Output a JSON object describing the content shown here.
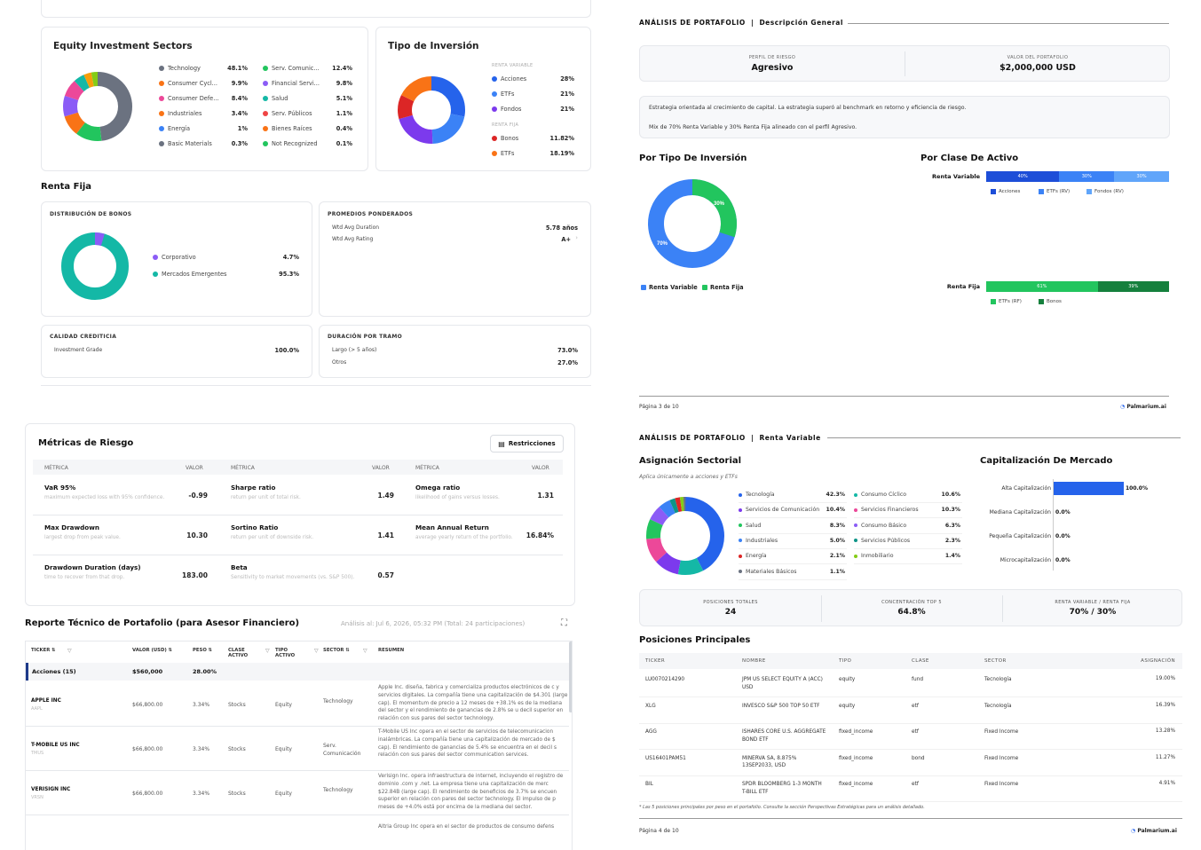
{
  "colors": {
    "blue": "#2563eb",
    "blue2": "#3b82f6",
    "blue3": "#60a5fa",
    "green": "#22c55e",
    "teal": "#14b8a6",
    "orange": "#f97316",
    "red": "#dc2626",
    "purple": "#8b5cf6",
    "gray": "#6b7280",
    "darkgreen": "#15803d"
  },
  "eq": {
    "title": "Equity Investment Sectors",
    "left": [
      {
        "n": "Technology",
        "v": "48.1%",
        "c": "#6b7280"
      },
      {
        "n": "Consumer Cycl...",
        "v": "9.9%",
        "c": "#f97316"
      },
      {
        "n": "Consumer Defe...",
        "v": "8.4%",
        "c": "#ec4899"
      },
      {
        "n": "Industriales",
        "v": "3.4%",
        "c": "#f97316"
      },
      {
        "n": "Energía",
        "v": "1%",
        "c": "#3b82f6"
      },
      {
        "n": "Basic Materials",
        "v": "0.3%",
        "c": "#6b7280"
      }
    ],
    "right": [
      {
        "n": "Serv. Comunic...",
        "v": "12.4%",
        "c": "#22c55e"
      },
      {
        "n": "Financial Servi...",
        "v": "9.8%",
        "c": "#8b5cf6"
      },
      {
        "n": "Salud",
        "v": "5.1%",
        "c": "#14b8a6"
      },
      {
        "n": "Serv. Públicos",
        "v": "1.1%",
        "c": "#ef4444"
      },
      {
        "n": "Bienes Raíces",
        "v": "0.4%",
        "c": "#f97316"
      },
      {
        "n": "Not Recognized",
        "v": "0.1%",
        "c": "#22c55e"
      }
    ]
  },
  "tipo": {
    "title": "Tipo de Inversión",
    "rv": "RENTA VARIABLE",
    "rf": "RENTA FIJA",
    "items": [
      {
        "n": "Acciones",
        "v": "28%",
        "c": "#2563eb"
      },
      {
        "n": "ETFs",
        "v": "21%",
        "c": "#3b82f6"
      },
      {
        "n": "Fondos",
        "v": "21%",
        "c": "#7c3aed"
      }
    ],
    "items2": [
      {
        "n": "Bonos",
        "v": "11.82%",
        "c": "#dc2626"
      },
      {
        "n": "ETFs",
        "v": "18.19%",
        "c": "#f97316"
      }
    ]
  },
  "rf": {
    "title": "Renta Fija",
    "dist": "DISTRIBUCIÓN DE BONOS",
    "corp": "Corporativo",
    "corpv": "4.7%",
    "em": "Mercados Emergentes",
    "emv": "95.3%",
    "prom": "PROMEDIOS PONDERADOS",
    "dur": "Wtd Avg Duration",
    "durv": "5.78 años",
    "rat": "Wtd Avg Rating",
    "ratv": "A+",
    "cal": "CALIDAD CREDITICIA",
    "ig": "Investment Grade",
    "igv": "100.0%",
    "tramo": "DURACIÓN POR TRAMO",
    "largo": "Largo (> 5 años)",
    "largov": "73.0%",
    "otros": "Otros",
    "otrosv": "27.0%"
  },
  "p3": {
    "h1": "ANÁLISIS DE PORTAFOLIO",
    "sep": "|",
    "h2": "Descripción General",
    "perfil_l": "PERFIL DE RIESGO",
    "perfil": "Agresivo",
    "valor_l": "VALOR DEL PORTAFOLIO",
    "valor": "$2,000,000 USD",
    "text1": "Estrategia orientada al crecimiento de capital. La estrategia superó al benchmark en retorno y eficiencia de riesgo.",
    "text2": "Mix de 70% Renta Variable y 30% Renta Fija alineado con el perfil Agresivo.",
    "tipo_title": "Por Tipo De Inversión",
    "clase_title": "Por Clase De Activo",
    "p30": "30%",
    "p70": "70%",
    "leg_rv": "Renta Variable",
    "leg_rf": "Renta Fija",
    "rv": "Renta Variable",
    "rv_b": [
      "40%",
      "30%",
      "30%"
    ],
    "rv_l": [
      "Acciones",
      "ETFs (RV)",
      "Fondos (RV)"
    ],
    "rfx": "Renta Fija",
    "rf_b": [
      "61%",
      "39%"
    ],
    "rf_l": [
      "ETFs (RF)",
      "Bonos"
    ],
    "page": "Página 3 de 10",
    "brand": "Palmarium.ai"
  },
  "risk": {
    "title": "Métricas de Riesgo",
    "btn": "Restricciones",
    "h_m": "MÉTRICA",
    "h_v": "VALOR",
    "rows": [
      [
        {
          "n": "VaR 95%",
          "d": "maximum expected loss with 95% confidence.",
          "v": "-0.99"
        },
        {
          "n": "Sharpe ratio",
          "d": "return per unit of total risk.",
          "v": "1.49"
        },
        {
          "n": "Omega ratio",
          "d": "likelihood of gains versus losses.",
          "v": "1.31"
        }
      ],
      [
        {
          "n": "Max Drawdown",
          "d": "largest drop from peak value.",
          "v": "10.30"
        },
        {
          "n": "Sortino Ratio",
          "d": "return per unit of downside risk.",
          "v": "1.41"
        },
        {
          "n": "Mean Annual Return",
          "d": "average yearly return of the portfolio.",
          "v": "16.84%"
        }
      ],
      [
        {
          "n": "Drawdown Duration (days)",
          "d": "time to recover from that drop.",
          "v": "183.00"
        },
        {
          "n": "Beta",
          "d": "Sensitivity to market movements (vs. S&P 500).",
          "v": "0.57"
        }
      ]
    ]
  },
  "rep": {
    "title": "Reporte Técnico de Portafolio (para Asesor Financiero)",
    "sub": "Análisis al: Jul 6, 2026, 05:32 PM (Total: 24 participaciones)",
    "cols": [
      "TICKER ⇅",
      "VALOR (USD) ⇅",
      "PESO ⇅",
      "CLASE ACTIVO",
      "TIPO ACTIVO",
      "SECTOR ⇅",
      "RESUMEN"
    ],
    "group": "Acciones (15)",
    "gval": "$560,000",
    "gpeso": "28.00%",
    "rows": [
      {
        "n": "APPLE INC",
        "t": "AAPL",
        "v": "$66,800.00",
        "p": "3.34%",
        "c": "Stocks",
        "ty": "Equity",
        "s": "Technology",
        "r": "Apple Inc. diseña, fabrica y comercializa productos electrónicos de c y servicios digitales. La compañía tiene una capitalización de $4.301 (large cap). El momentum de precio a 12 meses de +38.1% es de la mediana del sector y el rendimiento de ganancias de 2.8% se u decil superior en relación con sus pares del sector technology."
      },
      {
        "n": "T-MOBILE US INC",
        "t": "TMUS",
        "v": "$66,800.00",
        "p": "3.34%",
        "c": "Stocks",
        "ty": "Equity",
        "s": "Serv. Comunicación",
        "r": "T-Mobile US Inc opera en el sector de servicios de telecomunicacion inalámbricas. La compañía tiene una capitalización de mercado de $ cap). El rendimiento de ganancias de 5.4% se encuentra en el decil s relación con sus pares del sector communication services."
      },
      {
        "n": "VERISIGN INC",
        "t": "VRSN",
        "v": "$66,800.00",
        "p": "3.34%",
        "c": "Stocks",
        "ty": "Equity",
        "s": "Technology",
        "r": "Verisign Inc. opera infraestructura de internet, incluyendo el registro de dominio .com y .net. La empresa tiene una capitalización de merc $22.84B (large cap). El rendimiento de beneficios de 3.7% se encuen superior en relación con pares del sector technology. El impulso de p meses de +4.0% está por encima de la mediana del sector."
      }
    ],
    "last": "Altria Group Inc opera en el sector de productos de consumo defens"
  },
  "p4": {
    "h1": "ANÁLISIS DE PORTAFOLIO",
    "sep": "|",
    "h2": "Renta Variable",
    "asig": "Asignación Sectorial",
    "asig_sub": "Aplica únicamente a acciones y ETFs",
    "cap": "Capitalización De Mercado",
    "secL": [
      {
        "n": "Tecnología",
        "v": "42.3%",
        "c": "#2563eb"
      },
      {
        "n": "Servicios de Comunicación",
        "v": "10.4%",
        "c": "#7c3aed"
      },
      {
        "n": "Salud",
        "v": "8.3%",
        "c": "#22c55e"
      },
      {
        "n": "Industriales",
        "v": "5.0%",
        "c": "#3b82f6"
      },
      {
        "n": "Energía",
        "v": "2.1%",
        "c": "#dc2626"
      },
      {
        "n": "Materiales Básicos",
        "v": "1.1%",
        "c": "#6b7280"
      }
    ],
    "secR": [
      {
        "n": "Consumo Cíclico",
        "v": "10.6%",
        "c": "#14b8a6"
      },
      {
        "n": "Servicios Financieros",
        "v": "10.3%",
        "c": "#ec4899"
      },
      {
        "n": "Consumo Básico",
        "v": "6.3%",
        "c": "#8b5cf6"
      },
      {
        "n": "Servicios Públicos",
        "v": "2.3%",
        "c": "#0d9488"
      },
      {
        "n": "Inmobiliario",
        "v": "1.4%",
        "c": "#84cc16"
      }
    ],
    "caps": [
      {
        "n": "Alta Capitalización",
        "v": "100.0%",
        "f": 1
      },
      {
        "n": "Mediana Capitalización",
        "v": "0.0%",
        "f": 0
      },
      {
        "n": "Pequeña Capitalización",
        "v": "0.0%",
        "f": 0
      },
      {
        "n": "Microcapitalización",
        "v": "0.0%",
        "f": 0
      }
    ],
    "st": [
      {
        "l": "POSICIONES TOTALES",
        "v": "24"
      },
      {
        "l": "CONCENTRACIÓN TOP 5",
        "v": "64.8%"
      },
      {
        "l": "RENTA VARIABLE / RENTA FIJA",
        "v": "70% / 30%"
      }
    ],
    "pos": "Posiciones Principales",
    "cols": [
      "TICKER",
      "NOMBRE",
      "TIPO",
      "CLASE",
      "SECTOR",
      "ASIGNACIÓN"
    ],
    "rows": [
      [
        "LU0070214290",
        "JPM US SELECT EQUITY A (ACC) USD",
        "equity",
        "fund",
        "Tecnología",
        "19.00%"
      ],
      [
        "XLG",
        "INVESCO S&P 500 TOP 50 ETF",
        "equity",
        "etf",
        "Tecnología",
        "16.39%"
      ],
      [
        "AGG",
        "ISHARES CORE U.S. AGGREGATE BOND ETF",
        "fixed_income",
        "etf",
        "Fixed Income",
        "13.28%"
      ],
      [
        "US16401PAM51",
        "MINERVA SA, 8.875% 13SEP2033, USD",
        "fixed_income",
        "bond",
        "Fixed Income",
        "11.27%"
      ],
      [
        "BIL",
        "SPDR BLOOMBERG 1-3 MONTH T-BILL ETF",
        "fixed_income",
        "etf",
        "Fixed Income",
        "4.91%"
      ]
    ],
    "foot": "* Las 5 posiciones principales por peso en el portafolio. Consulte la sección Perspectivas Estratégicas para un análisis detallado.",
    "page": "Página 4 de 10",
    "brand": "Palmarium.ai"
  }
}
